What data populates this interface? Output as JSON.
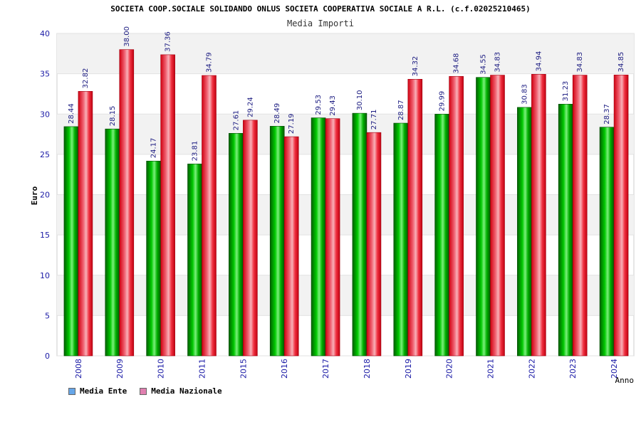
{
  "chart_data": {
    "type": "bar",
    "title": "SOCIETA COOP.SOCIALE SOLIDANDO ONLUS SOCIETA COOPERATIVA SOCIALE A R.L. (c.f.02025210465)",
    "subtitle": "Media Importi",
    "xlabel": "Anno",
    "ylabel": "Euro",
    "ylim": [
      0,
      40
    ],
    "yticks": [
      "0",
      "5",
      "10",
      "15",
      "20",
      "25",
      "30",
      "35",
      "40"
    ],
    "grid": true,
    "legend_placement": "bottom-left",
    "categories": [
      "2008",
      "2009",
      "2010",
      "2011",
      "2015",
      "2016",
      "2017",
      "2018",
      "2019",
      "2020",
      "2021",
      "2022",
      "2023",
      "2024"
    ],
    "series": [
      {
        "name": "Media Ente",
        "color": "#00a000",
        "legend_color": "#66a6e8",
        "values": [
          28.44,
          28.15,
          24.17,
          23.81,
          27.61,
          28.49,
          29.53,
          30.1,
          28.87,
          29.99,
          34.55,
          30.83,
          31.23,
          28.37
        ],
        "labels": [
          "28.44",
          "28.15",
          "24.17",
          "23.81",
          "27.61",
          "28.49",
          "29.53",
          "30.10",
          "28.87",
          "29.99",
          "34.55",
          "30.83",
          "31.23",
          "28.37"
        ]
      },
      {
        "name": "Media Nazionale",
        "color": "#e8101e",
        "legend_color": "#e080b0",
        "values": [
          32.82,
          38.0,
          37.36,
          34.79,
          29.24,
          27.19,
          29.43,
          27.71,
          34.32,
          34.68,
          34.83,
          34.94,
          34.83,
          34.85
        ],
        "labels": [
          "32.82",
          "38.00",
          "37.36",
          "34.79",
          "29.24",
          "27.19",
          "29.43",
          "27.71",
          "34.32",
          "34.68",
          "34.83",
          "34.94",
          "34.83",
          "34.85"
        ]
      }
    ]
  }
}
